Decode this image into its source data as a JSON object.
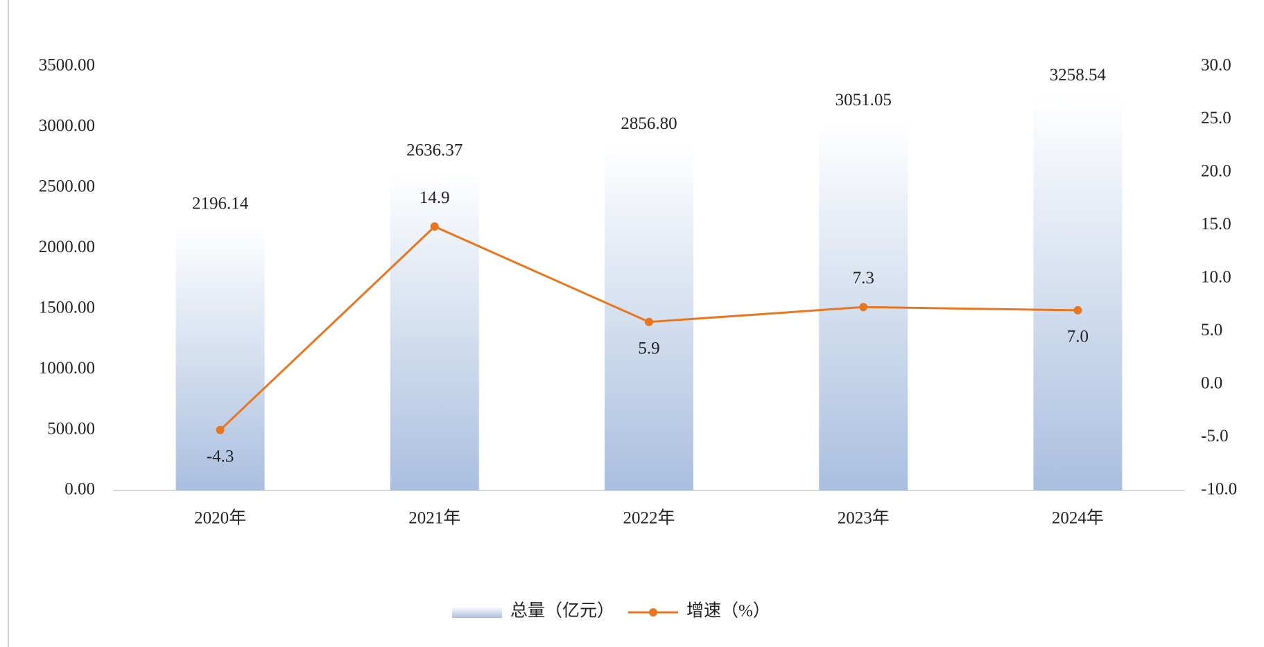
{
  "chart_data": {
    "type": "combo",
    "categories": [
      "2020年",
      "2021年",
      "2022年",
      "2023年",
      "2024年"
    ],
    "series": [
      {
        "name": "总量（亿元）",
        "type": "bar",
        "color": "#a9bfdf",
        "values": [
          2196.14,
          2636.37,
          2856.8,
          3051.05,
          3258.54
        ],
        "value_labels": [
          "2196.14",
          "2636.37",
          "2856.80",
          "3051.05",
          "3258.54"
        ]
      },
      {
        "name": "增速（%）",
        "type": "line",
        "axis": "y2",
        "color": "#e8761f",
        "values": [
          -4.3,
          14.9,
          5.9,
          7.3,
          7.0
        ],
        "value_labels": [
          "-4.3",
          "14.9",
          "5.9",
          "7.3",
          "7.0"
        ]
      }
    ],
    "ylim": [
      0,
      3500
    ],
    "yticks": [
      {
        "value": 0,
        "label": "0.00"
      },
      {
        "value": 500,
        "label": "500.00"
      },
      {
        "value": 1000,
        "label": "1000.00"
      },
      {
        "value": 1500,
        "label": "1500.00"
      },
      {
        "value": 2000,
        "label": "2000.00"
      },
      {
        "value": 2500,
        "label": "2500.00"
      },
      {
        "value": 3000,
        "label": "3000.00"
      },
      {
        "value": 3500,
        "label": "3500.00"
      }
    ],
    "y2lim": [
      -10,
      30
    ],
    "y2ticks": [
      {
        "value": -10,
        "label": "-10.0"
      },
      {
        "value": -5,
        "label": "-5.0"
      },
      {
        "value": 0,
        "label": "0.0"
      },
      {
        "value": 5,
        "label": "5.0"
      },
      {
        "value": 10,
        "label": "10.0"
      },
      {
        "value": 15,
        "label": "15.0"
      },
      {
        "value": 20,
        "label": "20.0"
      },
      {
        "value": 25,
        "label": "25.0"
      },
      {
        "value": 30,
        "label": "30.0"
      }
    ],
    "grid": false
  }
}
